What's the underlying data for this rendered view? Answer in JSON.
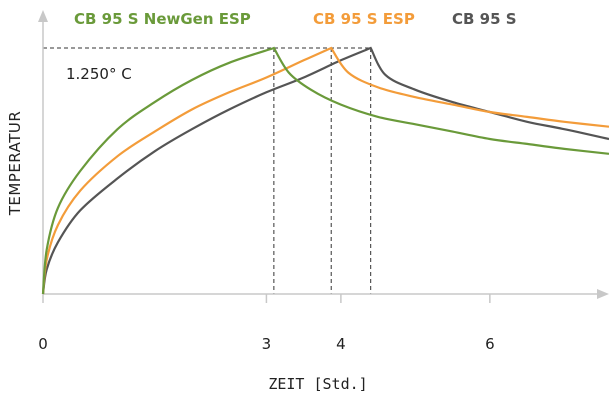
{
  "chart_data": {
    "type": "line",
    "title": "",
    "xlabel": "ZEIT [Std.]",
    "ylabel": "TEMPERATUR",
    "xlim": [
      0,
      7.6
    ],
    "x_ticks": [
      0,
      3,
      4,
      6
    ],
    "x_tick_labels": [
      "0",
      "3",
      "4",
      "6"
    ],
    "reference_label": "1.250° C",
    "series": [
      {
        "name": "CB 95 S NewGen ESP",
        "color": "#6a9a3a",
        "peak_x": 3.1,
        "x": [
          0,
          0.05,
          0.2,
          0.5,
          1.0,
          1.5,
          2.0,
          2.5,
          3.1,
          3.3,
          3.6,
          4.0,
          4.5,
          5.0,
          5.5,
          6.0,
          6.5,
          7.0,
          7.6
        ],
        "y": [
          0,
          0.18,
          0.35,
          0.5,
          0.67,
          0.78,
          0.87,
          0.94,
          1.0,
          0.9,
          0.83,
          0.77,
          0.72,
          0.69,
          0.66,
          0.63,
          0.61,
          0.59,
          0.57
        ]
      },
      {
        "name": "CB 95 S ESP",
        "color": "#f39c3a",
        "peak_x": 3.87,
        "x": [
          0,
          0.05,
          0.2,
          0.5,
          1.0,
          1.5,
          2.0,
          2.5,
          3.0,
          3.5,
          3.87,
          4.1,
          4.5,
          5.0,
          5.5,
          6.0,
          6.5,
          7.0,
          7.6
        ],
        "y": [
          0,
          0.14,
          0.28,
          0.42,
          0.56,
          0.66,
          0.75,
          0.82,
          0.88,
          0.95,
          1.0,
          0.9,
          0.84,
          0.8,
          0.77,
          0.74,
          0.72,
          0.7,
          0.68
        ]
      },
      {
        "name": "CB 95 S",
        "color": "#555555",
        "peak_x": 4.4,
        "x": [
          0,
          0.05,
          0.2,
          0.5,
          1.0,
          1.5,
          2.0,
          2.5,
          3.0,
          3.5,
          4.0,
          4.4,
          4.6,
          5.0,
          5.5,
          6.0,
          6.5,
          7.0,
          7.6
        ],
        "y": [
          0,
          0.1,
          0.21,
          0.34,
          0.47,
          0.58,
          0.67,
          0.75,
          0.82,
          0.88,
          0.95,
          1.0,
          0.89,
          0.83,
          0.78,
          0.74,
          0.7,
          0.67,
          0.63
        ]
      }
    ],
    "grid": false,
    "legend_position": "top"
  }
}
